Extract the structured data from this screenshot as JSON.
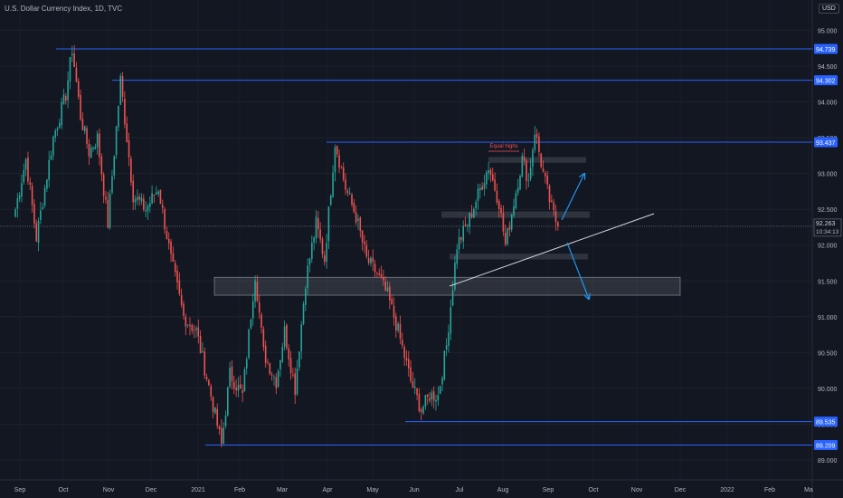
{
  "header": {
    "title": "U.S. Dollar Currency Index, 1D, TVC",
    "currency": "USD"
  },
  "colors": {
    "background": "#131722",
    "up": "#26a69a",
    "down": "#ef5350",
    "level_line": "#2962ff",
    "level_label_bg": "#2962ff",
    "zone": "#b2b5be",
    "arrow": "#2196f3",
    "trendline": "#d1d4dc",
    "annotation": "#ef5350"
  },
  "chart_data": {
    "type": "candlestick",
    "title": "U.S. Dollar Currency Index, 1D, TVC",
    "ylim": [
      88.85,
      95.35
    ],
    "y_ticks": [
      "89.000",
      "89.500",
      "90.000",
      "90.500",
      "91.000",
      "91.500",
      "92.000",
      "92.500",
      "93.000",
      "93.500",
      "94.000",
      "94.500",
      "95.000"
    ],
    "x_ticks": [
      "Sep",
      "Oct",
      "Nov",
      "Dec",
      "2021",
      "Feb",
      "Mar",
      "Apr",
      "May",
      "Jun",
      "Jul",
      "Aug",
      "Sep",
      "Oct",
      "Nov",
      "Dec",
      "2022",
      "Feb",
      "Ma"
    ],
    "anchors": [
      {
        "t": 0,
        "v": 92.5
      },
      {
        "t": 5,
        "v": 93.2
      },
      {
        "t": 10,
        "v": 92.1
      },
      {
        "t": 18,
        "v": 93.5
      },
      {
        "t": 24,
        "v": 94.1
      },
      {
        "t": 27,
        "v": 94.739
      },
      {
        "t": 31,
        "v": 93.8
      },
      {
        "t": 35,
        "v": 93.3
      },
      {
        "t": 39,
        "v": 93.5
      },
      {
        "t": 44,
        "v": 92.3
      },
      {
        "t": 50,
        "v": 94.302
      },
      {
        "t": 56,
        "v": 92.7
      },
      {
        "t": 62,
        "v": 92.5
      },
      {
        "t": 68,
        "v": 92.8
      },
      {
        "t": 74,
        "v": 91.8
      },
      {
        "t": 80,
        "v": 91.0
      },
      {
        "t": 86,
        "v": 90.8
      },
      {
        "t": 93,
        "v": 89.9
      },
      {
        "t": 98,
        "v": 89.209
      },
      {
        "t": 102,
        "v": 90.2
      },
      {
        "t": 108,
        "v": 89.9
      },
      {
        "t": 114,
        "v": 91.6
      },
      {
        "t": 118,
        "v": 90.5
      },
      {
        "t": 124,
        "v": 90.1
      },
      {
        "t": 128,
        "v": 90.8
      },
      {
        "t": 133,
        "v": 90.0
      },
      {
        "t": 138,
        "v": 91.5
      },
      {
        "t": 143,
        "v": 92.3
      },
      {
        "t": 147,
        "v": 91.8
      },
      {
        "t": 152,
        "v": 93.437
      },
      {
        "t": 157,
        "v": 92.8
      },
      {
        "t": 162,
        "v": 92.4
      },
      {
        "t": 167,
        "v": 91.8
      },
      {
        "t": 172,
        "v": 91.6
      },
      {
        "t": 177,
        "v": 91.3
      },
      {
        "t": 182,
        "v": 90.8
      },
      {
        "t": 188,
        "v": 90.1
      },
      {
        "t": 193,
        "v": 89.7
      },
      {
        "t": 197,
        "v": 89.9
      },
      {
        "t": 201,
        "v": 89.9
      },
      {
        "t": 205,
        "v": 90.6
      },
      {
        "t": 210,
        "v": 92.0
      },
      {
        "t": 215,
        "v": 92.3
      },
      {
        "t": 220,
        "v": 92.7
      },
      {
        "t": 225,
        "v": 93.1
      },
      {
        "t": 230,
        "v": 92.6
      },
      {
        "t": 233,
        "v": 92.0
      },
      {
        "t": 237,
        "v": 92.6
      },
      {
        "t": 241,
        "v": 93.2
      },
      {
        "t": 244,
        "v": 92.9
      },
      {
        "t": 247,
        "v": 93.6
      },
      {
        "t": 251,
        "v": 93.0
      },
      {
        "t": 255,
        "v": 92.5
      },
      {
        "t": 258,
        "v": 92.263
      }
    ],
    "price_levels": [
      {
        "value": 94.739,
        "label": "94.739"
      },
      {
        "value": 94.302,
        "label": "94.302"
      },
      {
        "value": 93.437,
        "label": "93.437"
      },
      {
        "value": 89.535,
        "label": "89.535"
      },
      {
        "value": 89.209,
        "label": "89.209"
      }
    ],
    "current_price": {
      "value": 92.263,
      "label": "92.263",
      "countdown": "10:34:13"
    },
    "zones": [
      {
        "from": 91.3,
        "to": 91.55
      },
      {
        "from": 93.15,
        "to": 93.23
      },
      {
        "from": 92.38,
        "to": 92.47
      },
      {
        "from": 91.8,
        "to": 91.88
      }
    ],
    "annotations": [
      {
        "text": "Equal highs",
        "value": 93.26
      }
    ]
  }
}
